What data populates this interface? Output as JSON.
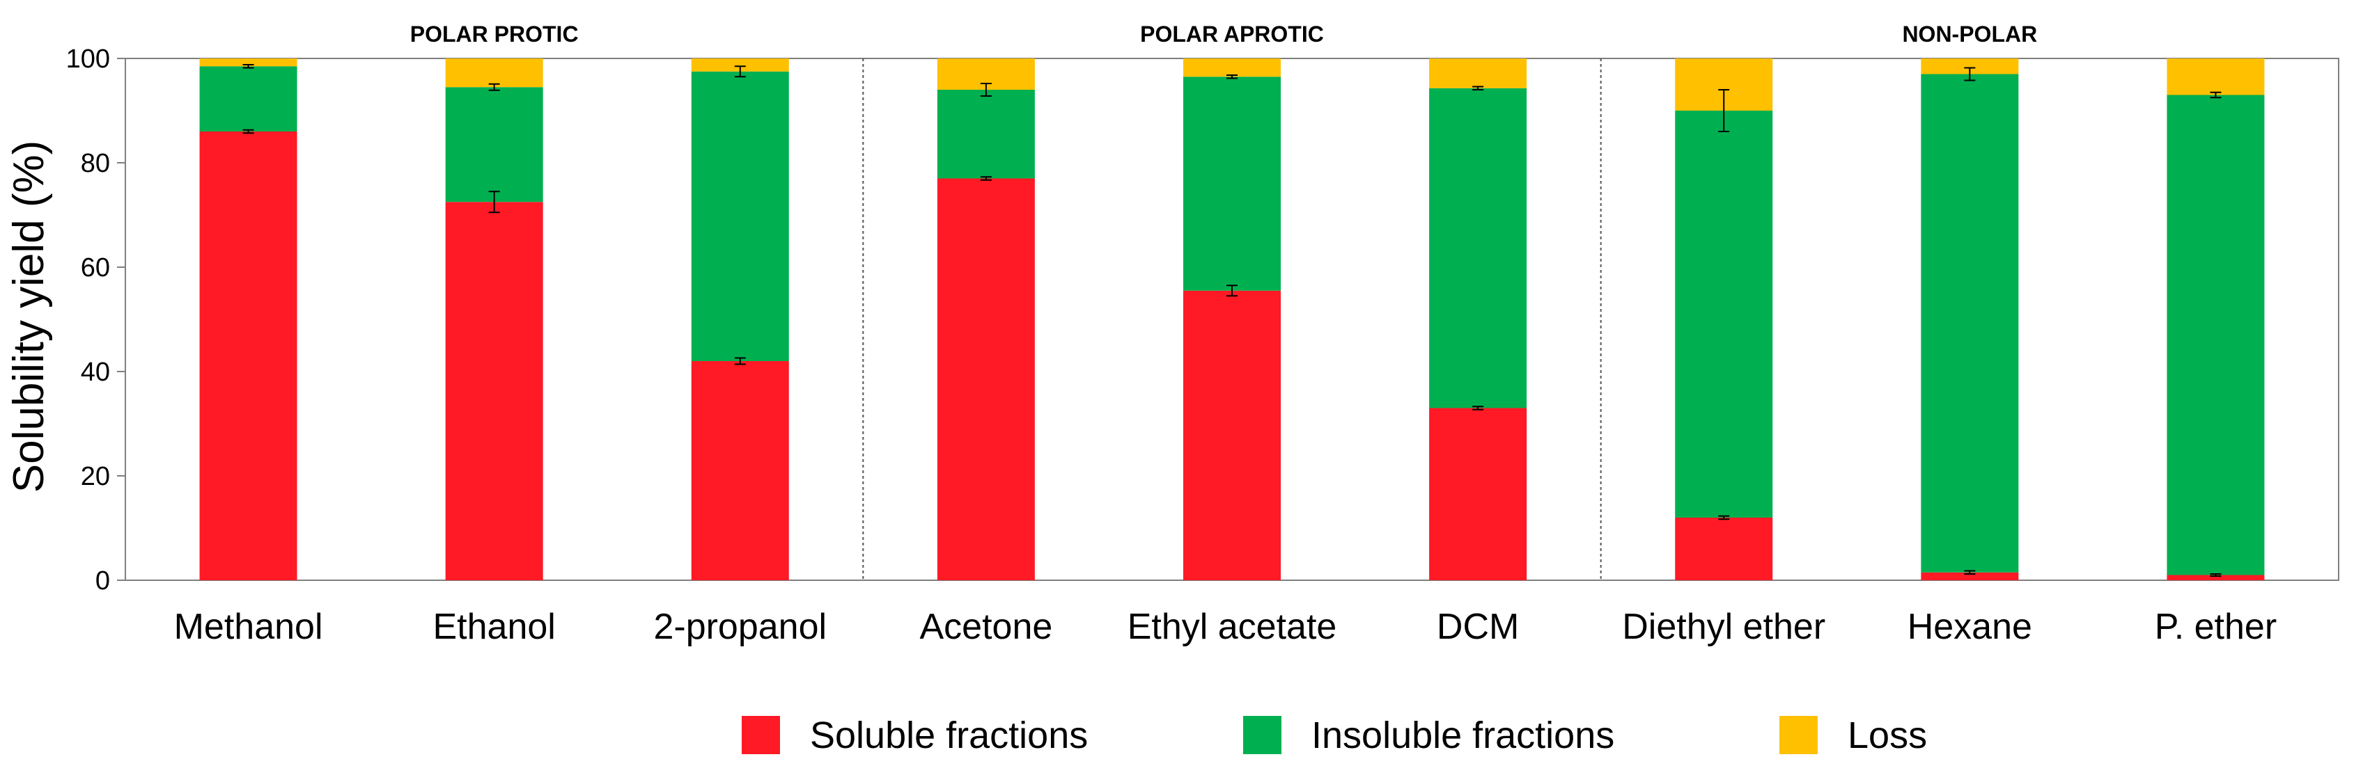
{
  "chart_data": {
    "type": "bar",
    "stacked": true,
    "categories": [
      "Methanol",
      "Ethanol",
      "2-propanol",
      "Acetone",
      "Ethyl acetate",
      "DCM",
      "Diethyl ether",
      "Hexane",
      "P. ether"
    ],
    "groups": [
      {
        "label": "POLAR PROTIC",
        "categories": [
          "Methanol",
          "Ethanol",
          "2-propanol"
        ]
      },
      {
        "label": "POLAR APROTIC",
        "categories": [
          "Acetone",
          "Ethyl acetate",
          "DCM"
        ]
      },
      {
        "label": "NON-POLAR",
        "categories": [
          "Diethyl ether",
          "Hexane",
          "P. ether"
        ]
      }
    ],
    "series": [
      {
        "name": "Soluble fractions",
        "color": "#ff1a25",
        "values": [
          86,
          72.5,
          42,
          77,
          55.5,
          33,
          12,
          1.5,
          1
        ],
        "errors": [
          0.3,
          2,
          0.6,
          0.3,
          1,
          0.3,
          0.3,
          0.3,
          0.2
        ]
      },
      {
        "name": "Insoluble fractions",
        "color": "#00b050",
        "values": [
          12.5,
          22,
          55.5,
          17,
          41,
          61.3,
          78,
          95.5,
          92
        ],
        "errors": [
          0.3,
          0.6,
          1,
          1.2,
          0.3,
          0.3,
          4,
          1.2,
          0.5
        ]
      },
      {
        "name": "Loss",
        "color": "#ffc000",
        "values": [
          1.5,
          5.5,
          2.5,
          6,
          3.5,
          5.7,
          10,
          3,
          7
        ],
        "errors": [
          0,
          0,
          0,
          0,
          0,
          0,
          0,
          0,
          0
        ]
      }
    ],
    "title": "",
    "xlabel": "",
    "ylabel": "Solubility yield (%)",
    "ylim": [
      0,
      100
    ],
    "yticks": [
      0,
      20,
      40,
      60,
      80,
      100
    ],
    "legend_position": "bottom"
  }
}
